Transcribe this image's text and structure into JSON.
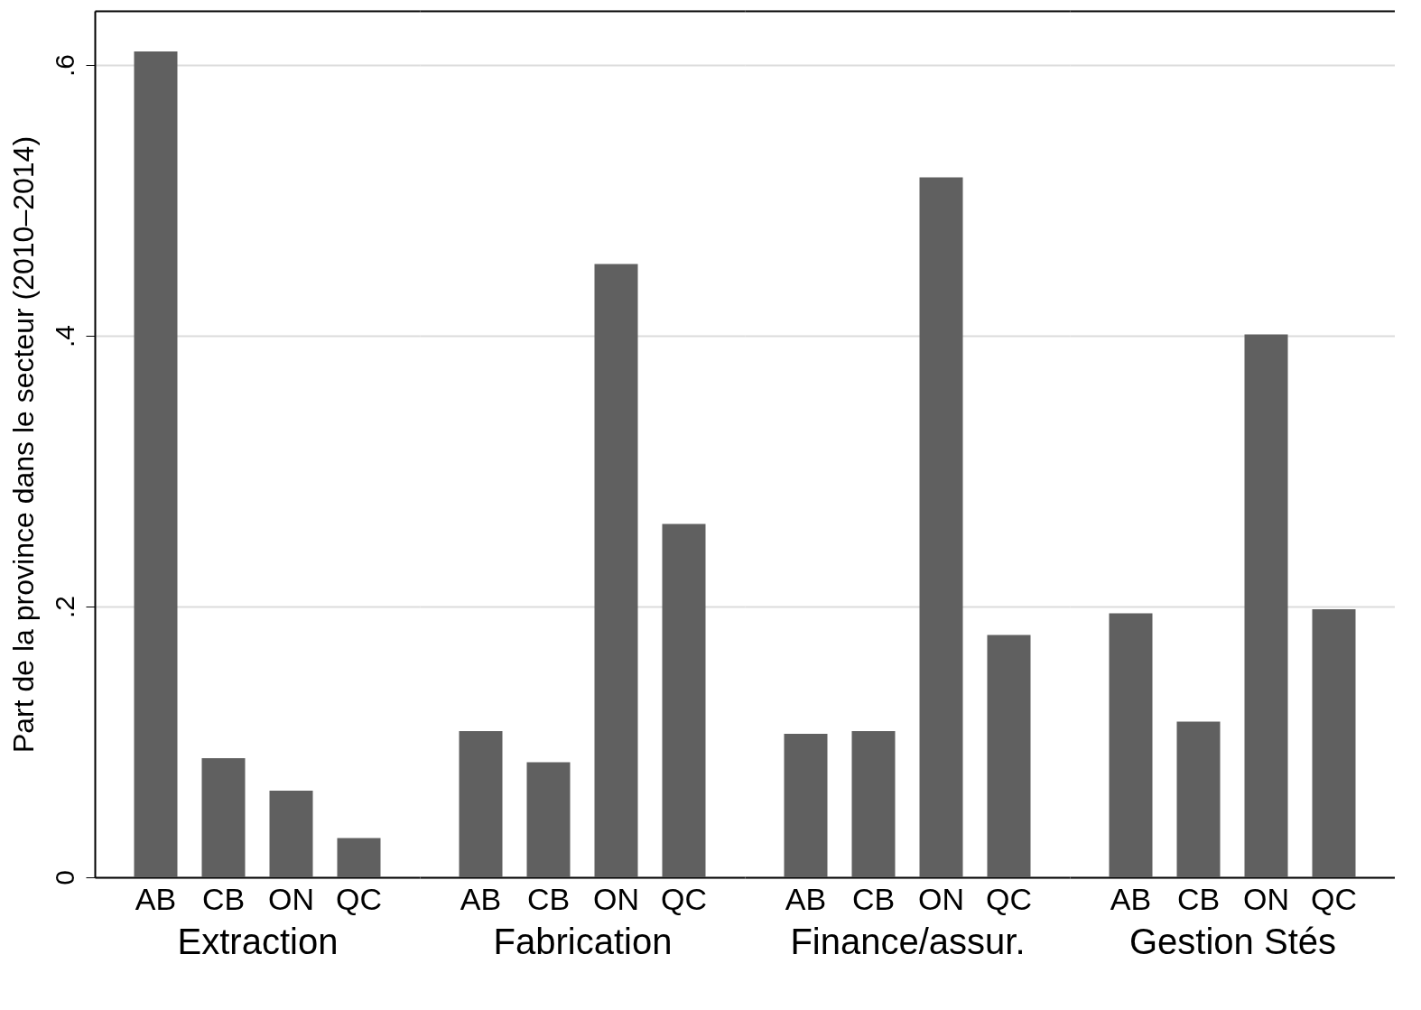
{
  "chart_data": [
    {
      "type": "bar",
      "xlabel": "Extraction",
      "ylabel": "Part de la province dans le secteur (2010–2014)",
      "categories": [
        "AB",
        "CB",
        "ON",
        "QC"
      ],
      "values": [
        0.61,
        0.088,
        0.064,
        0.029
      ],
      "color": "#606060",
      "ylim": [
        0,
        0.64
      ],
      "yticks": [
        {
          "value": 0,
          "label": "0"
        },
        {
          "value": 0.2,
          "label": ".2"
        },
        {
          "value": 0.4,
          "label": ".4"
        },
        {
          "value": 0.6,
          "label": ".6"
        }
      ],
      "grid": "y"
    },
    {
      "type": "bar",
      "xlabel": "Fabrication",
      "categories": [
        "AB",
        "CB",
        "ON",
        "QC"
      ],
      "values": [
        0.108,
        0.085,
        0.453,
        0.261
      ],
      "color": "#606060",
      "ylim": [
        0,
        0.64
      ],
      "yticks": [
        0,
        0.2,
        0.4,
        0.6
      ],
      "grid": "y",
      "tick_labels": "x"
    },
    {
      "type": "bar",
      "xlabel": "Finance/assur.",
      "categories": [
        "AB",
        "CB",
        "ON",
        "QC"
      ],
      "values": [
        0.106,
        0.108,
        0.517,
        0.179
      ],
      "color": "#606060",
      "ylim": [
        0,
        0.64
      ],
      "yticks": [
        0,
        0.2,
        0.4,
        0.6
      ],
      "grid": "y",
      "tick_labels": "x"
    },
    {
      "type": "bar",
      "xlabel": "Gestion Stés",
      "categories": [
        "AB",
        "CB",
        "ON",
        "QC"
      ],
      "values": [
        0.195,
        0.115,
        0.401,
        0.198
      ],
      "color": "#606060",
      "ylim": [
        0,
        0.64
      ],
      "yticks": [
        0,
        0.2,
        0.4,
        0.6
      ],
      "grid": "y",
      "tick_labels": "x"
    }
  ]
}
